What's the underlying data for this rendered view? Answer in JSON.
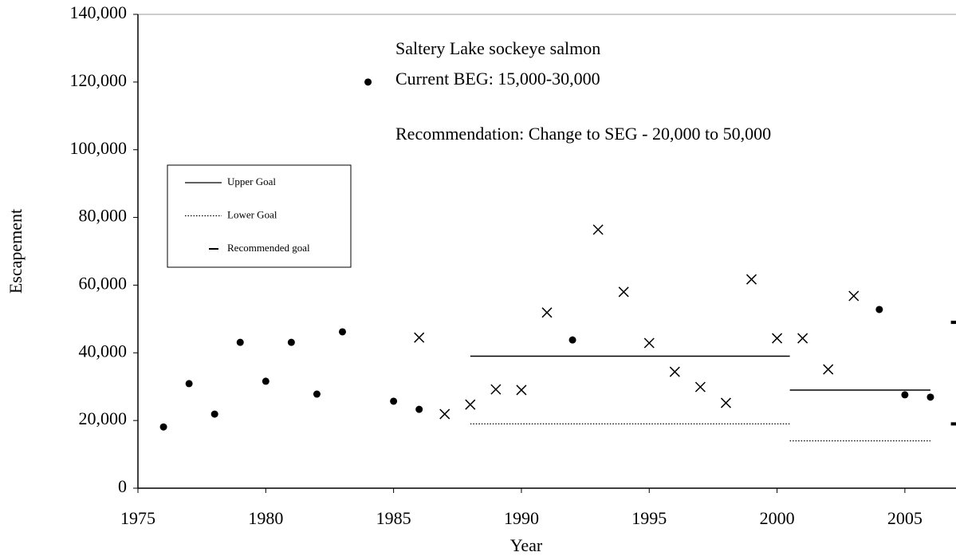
{
  "chart_data": {
    "type": "scatter",
    "x_label": "Year",
    "y_label": "Escapement",
    "annotations": [
      "Saltery Lake sockeye salmon",
      "Current BEG: 15,000-30,000",
      "Recommendation: Change to SEG - 20,000 to 50,000"
    ],
    "xlim": [
      1975,
      2007
    ],
    "xticks": [
      1975,
      1980,
      1985,
      1990,
      1995,
      2000,
      2005
    ],
    "ylim": [
      0,
      140000
    ],
    "yticks": [
      0,
      {
        "value": 20000,
        "label": "20,000"
      },
      {
        "value": 40000,
        "label": "40,000"
      },
      {
        "value": 60000,
        "label": "60,000"
      },
      {
        "value": 80000,
        "label": "80,000"
      },
      {
        "value": 100000,
        "label": "100,000"
      },
      {
        "value": 120000,
        "label": "120,000"
      },
      {
        "value": 140000,
        "label": "140,000"
      }
    ],
    "legend": "upper left",
    "series": [
      {
        "marker": "dot",
        "color": "#000000",
        "x": [
          1976,
          1977,
          1978,
          1979,
          1980,
          1981,
          1982,
          1983,
          1984,
          1985,
          1986,
          1992,
          2004,
          2005,
          2006
        ],
        "values": [
          18100,
          30900,
          21900,
          43100,
          31600,
          43100,
          27800,
          46200,
          120000,
          25700,
          23300,
          43800,
          52800,
          27600,
          26900
        ]
      },
      {
        "marker": "cross",
        "color": "#000000",
        "x": [
          1986,
          1987,
          1988,
          1989,
          1990,
          1991,
          1993,
          1994,
          1995,
          1996,
          1997,
          1998,
          1999,
          2000,
          2001,
          2002,
          2003
        ],
        "values": [
          44500,
          21900,
          24700,
          29200,
          29000,
          51900,
          76400,
          58000,
          42900,
          34400,
          29900,
          25200,
          61700,
          44300,
          44300,
          35100,
          56800
        ]
      },
      {
        "name": "Upper Goal",
        "marker": "solid",
        "color": "#000000",
        "segments": [
          {
            "x": [
              1988,
              2000.5
            ],
            "value": 39000
          },
          {
            "x": [
              2000.5,
              2006
            ],
            "value": 29000
          }
        ]
      },
      {
        "name": "Lower Goal",
        "marker": "dotted",
        "color": "#000000",
        "segments": [
          {
            "x": [
              1988,
              2000.5
            ],
            "value": 19000
          },
          {
            "x": [
              2000.5,
              2006
            ],
            "value": 14000
          }
        ]
      },
      {
        "name": "Recommended goal",
        "marker": "dash",
        "color": "#000000",
        "segments": [
          {
            "x": [
              2006.8,
              2007
            ],
            "value": 49000
          },
          {
            "x": [
              2006.8,
              2007
            ],
            "value": 19000
          }
        ]
      }
    ]
  }
}
